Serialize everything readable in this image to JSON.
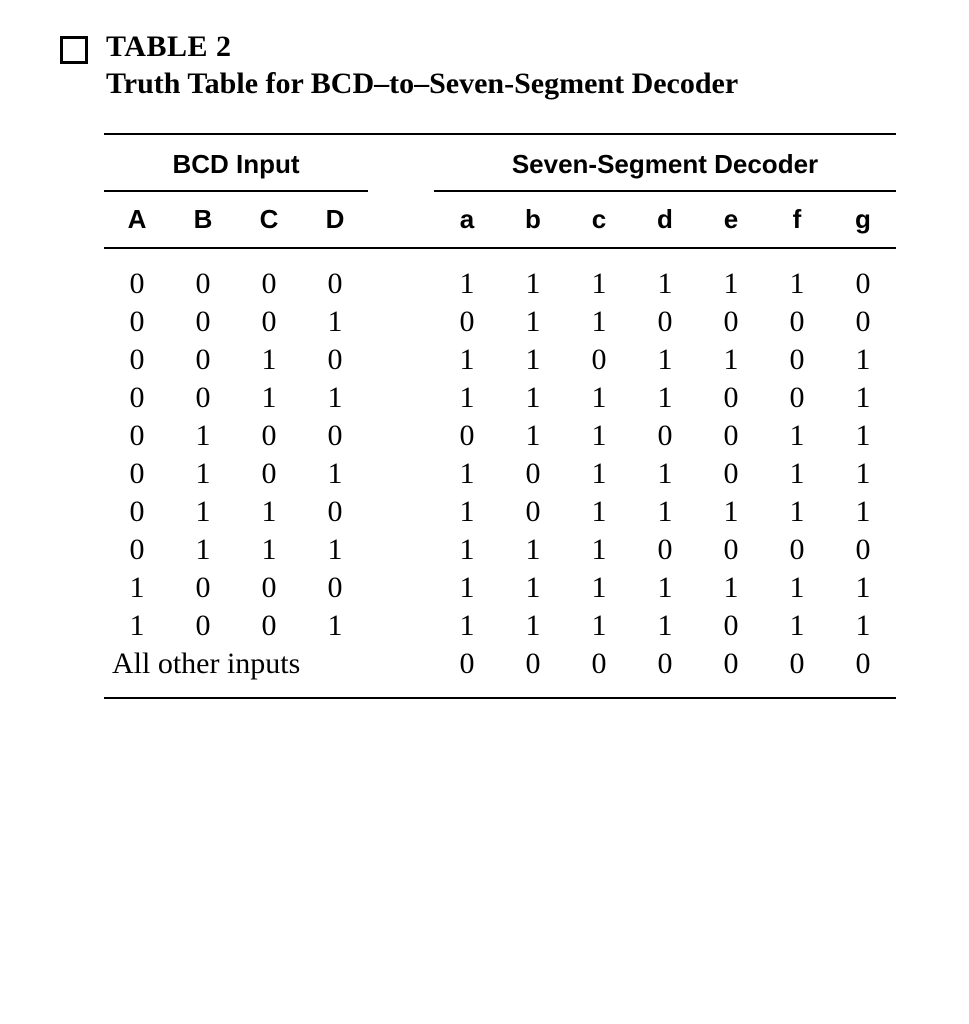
{
  "title": {
    "label": "TABLE 2",
    "caption": "Truth Table for BCD–to–Seven-Segment Decoder"
  },
  "table": {
    "group_headers": {
      "input": "BCD Input",
      "output": "Seven-Segment Decoder"
    },
    "columns": {
      "input": [
        "A",
        "B",
        "C",
        "D"
      ],
      "output": [
        "a",
        "b",
        "c",
        "d",
        "e",
        "f",
        "g"
      ]
    },
    "rows": [
      {
        "in": [
          "0",
          "0",
          "0",
          "0"
        ],
        "out": [
          "1",
          "1",
          "1",
          "1",
          "1",
          "1",
          "0"
        ]
      },
      {
        "in": [
          "0",
          "0",
          "0",
          "1"
        ],
        "out": [
          "0",
          "1",
          "1",
          "0",
          "0",
          "0",
          "0"
        ]
      },
      {
        "in": [
          "0",
          "0",
          "1",
          "0"
        ],
        "out": [
          "1",
          "1",
          "0",
          "1",
          "1",
          "0",
          "1"
        ]
      },
      {
        "in": [
          "0",
          "0",
          "1",
          "1"
        ],
        "out": [
          "1",
          "1",
          "1",
          "1",
          "0",
          "0",
          "1"
        ]
      },
      {
        "in": [
          "0",
          "1",
          "0",
          "0"
        ],
        "out": [
          "0",
          "1",
          "1",
          "0",
          "0",
          "1",
          "1"
        ]
      },
      {
        "in": [
          "0",
          "1",
          "0",
          "1"
        ],
        "out": [
          "1",
          "0",
          "1",
          "1",
          "0",
          "1",
          "1"
        ]
      },
      {
        "in": [
          "0",
          "1",
          "1",
          "0"
        ],
        "out": [
          "1",
          "0",
          "1",
          "1",
          "1",
          "1",
          "1"
        ]
      },
      {
        "in": [
          "0",
          "1",
          "1",
          "1"
        ],
        "out": [
          "1",
          "1",
          "1",
          "0",
          "0",
          "0",
          "0"
        ]
      },
      {
        "in": [
          "1",
          "0",
          "0",
          "0"
        ],
        "out": [
          "1",
          "1",
          "1",
          "1",
          "1",
          "1",
          "1"
        ]
      },
      {
        "in": [
          "1",
          "0",
          "0",
          "1"
        ],
        "out": [
          "1",
          "1",
          "1",
          "1",
          "0",
          "1",
          "1"
        ]
      }
    ],
    "other_label": "All other inputs",
    "other_out": [
      "0",
      "0",
      "0",
      "0",
      "0",
      "0",
      "0"
    ]
  },
  "style": {
    "background_color": "#ffffff",
    "text_color": "#000000",
    "rule_color": "#000000",
    "title_fontsize": 30,
    "header_fontsize": 26,
    "data_fontsize": 30,
    "bullet_size": 22,
    "bullet_border": 3
  }
}
